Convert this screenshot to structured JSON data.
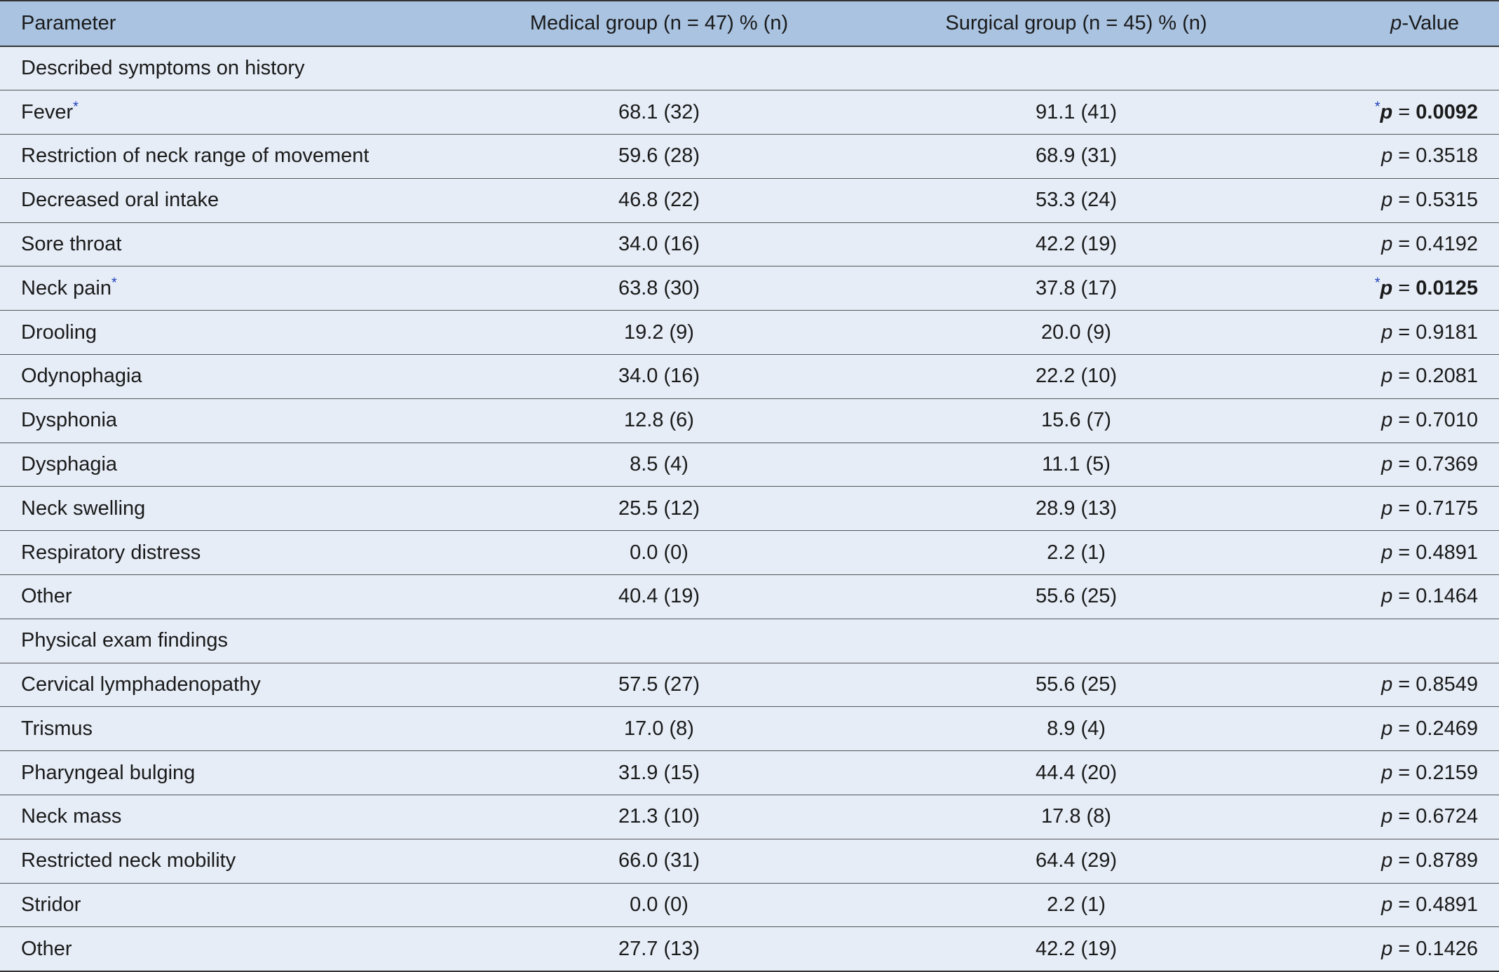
{
  "table": {
    "headers": {
      "parameter": "Parameter",
      "medical": "Medical group (n = 47) % (n)",
      "surgical": "Surgical group (n = 45) % (n)",
      "pvalue_italic": "p",
      "pvalue_rest": "-Value"
    },
    "rows": [
      {
        "section": "Described symptoms on history"
      },
      {
        "label": "Fever",
        "marker": "*",
        "medical": "68.1 (32)",
        "surgical": "91.1 (41)",
        "p_prefix": "*",
        "p_letter": "p",
        "p_eq": " = ",
        "p_value": "0.0092",
        "significant": true
      },
      {
        "label": "Restriction of neck range of movement",
        "medical": "59.6 (28)",
        "surgical": "68.9 (31)",
        "p_letter": "p",
        "p_eq": " = ",
        "p_value": "0.3518"
      },
      {
        "label": "Decreased oral intake",
        "medical": "46.8 (22)",
        "surgical": "53.3 (24)",
        "p_letter": "p",
        "p_eq": " = ",
        "p_value": "0.5315"
      },
      {
        "label": "Sore throat",
        "medical": "34.0 (16)",
        "surgical": "42.2 (19)",
        "p_letter": "p",
        "p_eq": " = ",
        "p_value": "0.4192"
      },
      {
        "label": "Neck pain",
        "marker": "*",
        "medical": "63.8 (30)",
        "surgical": "37.8 (17)",
        "p_prefix": "*",
        "p_letter": "p",
        "p_eq": " = ",
        "p_value": "0.0125",
        "significant": true
      },
      {
        "label": "Drooling",
        "medical": "19.2 (9)",
        "surgical": "20.0 (9)",
        "p_letter": "p",
        "p_eq": " = ",
        "p_value": "0.9181"
      },
      {
        "label": "Odynophagia",
        "medical": "34.0 (16)",
        "surgical": "22.2 (10)",
        "p_letter": "p",
        "p_eq": " = ",
        "p_value": "0.2081"
      },
      {
        "label": "Dysphonia",
        "medical": "12.8 (6)",
        "surgical": "15.6 (7)",
        "p_letter": "p",
        "p_eq": " = ",
        "p_value": "0.7010"
      },
      {
        "label": "Dysphagia",
        "medical": "8.5 (4)",
        "surgical": "11.1 (5)",
        "p_letter": "p",
        "p_eq": " = ",
        "p_value": "0.7369"
      },
      {
        "label": "Neck swelling",
        "medical": "25.5 (12)",
        "surgical": "28.9 (13)",
        "p_letter": "p",
        "p_eq": " = ",
        "p_value": "0.7175"
      },
      {
        "label": "Respiratory distress",
        "medical": "0.0 (0)",
        "surgical": "2.2 (1)",
        "p_letter": "p",
        "p_eq": " = ",
        "p_value": "0.4891"
      },
      {
        "label": "Other",
        "medical": "40.4 (19)",
        "surgical": "55.6 (25)",
        "p_letter": "p",
        "p_eq": " = ",
        "p_value": "0.1464"
      },
      {
        "section": "Physical exam findings"
      },
      {
        "label": "Cervical lymphadenopathy",
        "medical": "57.5 (27)",
        "surgical": "55.6 (25)",
        "p_letter": "p",
        "p_eq": " = ",
        "p_value": "0.8549"
      },
      {
        "label": "Trismus",
        "medical": "17.0 (8)",
        "surgical": "8.9 (4)",
        "p_letter": "p",
        "p_eq": " = ",
        "p_value": "0.2469"
      },
      {
        "label": "Pharyngeal bulging",
        "medical": "31.9 (15)",
        "surgical": "44.4 (20)",
        "p_letter": "p",
        "p_eq": " = ",
        "p_value": "0.2159"
      },
      {
        "label": "Neck mass",
        "medical": "21.3 (10)",
        "surgical": "17.8 (8)",
        "p_letter": "p",
        "p_eq": " = ",
        "p_value": "0.6724"
      },
      {
        "label": "Restricted neck mobility",
        "medical": "66.0 (31)",
        "surgical": "64.4 (29)",
        "p_letter": "p",
        "p_eq": " = ",
        "p_value": "0.8789"
      },
      {
        "label": "Stridor",
        "medical": "0.0 (0)",
        "surgical": "2.2 (1)",
        "p_letter": "p",
        "p_eq": " = ",
        "p_value": "0.4891"
      },
      {
        "label": "Other",
        "medical": "27.7 (13)",
        "surgical": "42.2 (19)",
        "p_letter": "p",
        "p_eq": " = ",
        "p_value": "0.1426"
      }
    ]
  },
  "colors": {
    "header_bg": "#a9c3e1",
    "body_bg": "#e6edf7",
    "asterisk": "#1f3fb8"
  }
}
